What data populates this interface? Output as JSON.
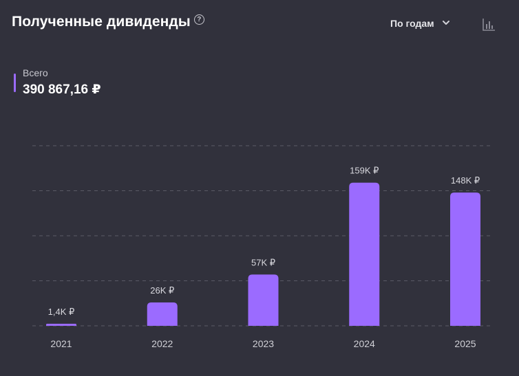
{
  "header": {
    "title": "Полученные дивиденды",
    "help_icon": "question-circle-icon"
  },
  "controls": {
    "period_label": "По годам",
    "dropdown_icon": "chevron-down-icon",
    "chart_icon": "bar-chart-icon"
  },
  "summary": {
    "label": "Всего",
    "value": "390 867,16 ₽"
  },
  "colors": {
    "background": "#31313c",
    "bar": "#9b6bff",
    "grid": "#5a5a66"
  },
  "chart_data": {
    "type": "bar",
    "categories": [
      "2021",
      "2022",
      "2023",
      "2024",
      "2025"
    ],
    "values": [
      1400,
      26000,
      57000,
      159000,
      148000
    ],
    "data_labels": [
      "1,4K ₽",
      "26K ₽",
      "57K ₽",
      "159K ₽",
      "148K ₽"
    ],
    "ylim": [
      0,
      200000
    ],
    "grid": true,
    "title": "",
    "xlabel": "",
    "ylabel": ""
  }
}
